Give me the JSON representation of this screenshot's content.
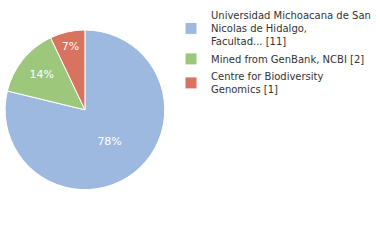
{
  "chart_data": {
    "type": "pie",
    "categories": [
      "Universidad Michoacana de San Nicolas de Hidalgo, Facultad... [11]",
      "Mined from GenBank, NCBI [2]",
      "Centre for Biodiversity Genomics [1]"
    ],
    "values": [
      78,
      14,
      7
    ],
    "value_labels": [
      "78%",
      "14%",
      "7%"
    ],
    "colors": [
      "#9db9e0",
      "#9dc77b",
      "#d9735f"
    ],
    "data_labels": true,
    "legend": "top right"
  }
}
